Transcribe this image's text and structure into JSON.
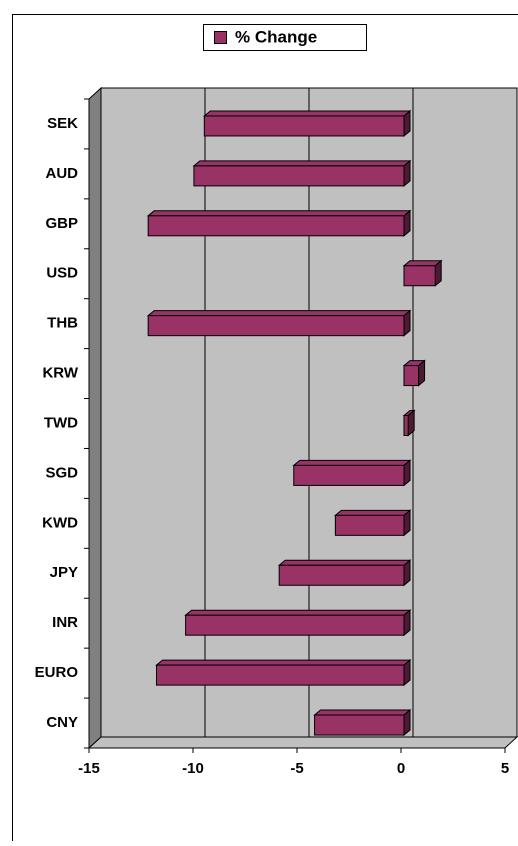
{
  "chart_data": {
    "type": "bar",
    "orientation": "horizontal",
    "categories": [
      "SEK",
      "AUD",
      "GBP",
      "USD",
      "THB",
      "KRW",
      "TWD",
      "SGD",
      "KWD",
      "JPY",
      "INR",
      "EURO",
      "CNY"
    ],
    "series": [
      {
        "name": "% Change",
        "color": "#993366",
        "values": [
          -9.6,
          -10.1,
          -12.3,
          1.5,
          -12.3,
          0.7,
          0.2,
          -5.3,
          -3.3,
          -6.0,
          -10.5,
          -11.9,
          -4.3
        ]
      }
    ],
    "xlim": [
      -15,
      5
    ],
    "xticks": [
      -15,
      -10,
      -5,
      0,
      5
    ],
    "grid": true,
    "legend": "top"
  }
}
